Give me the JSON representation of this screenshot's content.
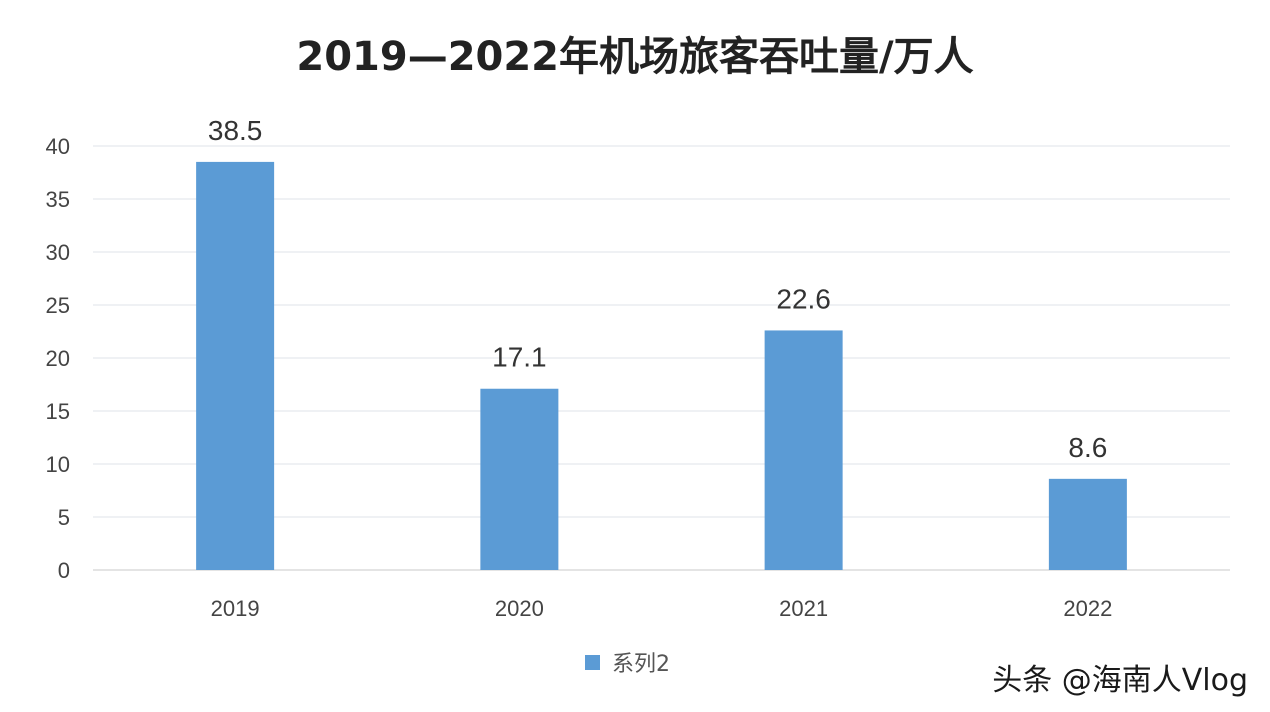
{
  "chart_data": {
    "type": "bar",
    "title": "2019—2022年机场旅客吞吐量/万人",
    "categories": [
      "2019",
      "2020",
      "2021",
      "2022"
    ],
    "series": [
      {
        "name": "系列2",
        "values": [
          38.5,
          17.1,
          22.6,
          8.6
        ],
        "color": "#5b9bd5"
      }
    ],
    "data_labels": [
      "38.5",
      "17.1",
      "22.6",
      "8.6"
    ],
    "ylim": [
      0,
      40
    ],
    "yticks": [
      0,
      5,
      10,
      15,
      20,
      25,
      30,
      35,
      40
    ],
    "grid": true,
    "legend_position": "bottom"
  },
  "watermark": "头条 @海南人Vlog"
}
